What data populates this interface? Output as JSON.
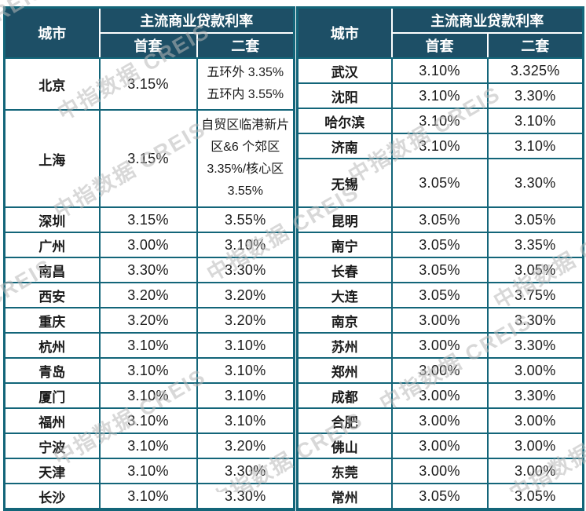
{
  "watermark": {
    "text": "中指数据 CREIS",
    "color": "#b9b9b9"
  },
  "chart_data": [
    {
      "type": "table",
      "title": "",
      "header": {
        "city": "城市",
        "group": "主流商业贷款利率",
        "first": "首套",
        "second": "二套"
      },
      "columns": [
        "城市",
        "首套",
        "二套"
      ],
      "rows": [
        {
          "city": "北京",
          "first": "3.15%",
          "second": "五环外 3.35%五环内 3.55%",
          "tall": 2
        },
        {
          "city": "上海",
          "first": "3.15%",
          "second": "自贸区临港新片区&6 个郊区 3.35%/核心区 3.55%",
          "tall": 4
        },
        {
          "city": "深圳",
          "first": "3.15%",
          "second": "3.55%"
        },
        {
          "city": "广州",
          "first": "3.00%",
          "second": "3.10%"
        },
        {
          "city": "南昌",
          "first": "3.30%",
          "second": "3.30%"
        },
        {
          "city": "西安",
          "first": "3.20%",
          "second": "3.20%"
        },
        {
          "city": "重庆",
          "first": "3.20%",
          "second": "3.20%"
        },
        {
          "city": "杭州",
          "first": "3.10%",
          "second": "3.10%"
        },
        {
          "city": "青岛",
          "first": "3.10%",
          "second": "3.10%"
        },
        {
          "city": "厦门",
          "first": "3.10%",
          "second": "3.10%"
        },
        {
          "city": "福州",
          "first": "3.10%",
          "second": "3.10%"
        },
        {
          "city": "宁波",
          "first": "3.10%",
          "second": "3.20%"
        },
        {
          "city": "天津",
          "first": "3.10%",
          "second": "3.30%"
        },
        {
          "city": "长沙",
          "first": "3.10%",
          "second": "3.30%"
        }
      ]
    },
    {
      "type": "table",
      "title": "",
      "header": {
        "city": "城市",
        "group": "主流商业贷款利率",
        "first": "首套",
        "second": "二套"
      },
      "columns": [
        "城市",
        "首套",
        "二套"
      ],
      "rows": [
        {
          "city": "武汉",
          "first": "3.10%",
          "second": "3.325%"
        },
        {
          "city": "沈阳",
          "first": "3.10%",
          "second": "3.30%"
        },
        {
          "city": "哈尔滨",
          "first": "3.10%",
          "second": "3.10%"
        },
        {
          "city": "济南",
          "first": "3.10%",
          "second": "3.10%"
        },
        {
          "city": "无锡",
          "first": "3.05%",
          "second": "3.30%",
          "tall": 2
        },
        {
          "city": "昆明",
          "first": "3.05%",
          "second": "3.05%"
        },
        {
          "city": "南宁",
          "first": "3.05%",
          "second": "3.35%"
        },
        {
          "city": "长春",
          "first": "3.05%",
          "second": "3.05%"
        },
        {
          "city": "大连",
          "first": "3.05%",
          "second": "3.75%"
        },
        {
          "city": "南京",
          "first": "3.00%",
          "second": "3.30%"
        },
        {
          "city": "苏州",
          "first": "3.00%",
          "second": "3.30%"
        },
        {
          "city": "郑州",
          "first": "3.00%",
          "second": "3.00%"
        },
        {
          "city": "成都",
          "first": "3.00%",
          "second": "3.30%"
        },
        {
          "city": "合肥",
          "first": "3.00%",
          "second": "3.00%"
        },
        {
          "city": "佛山",
          "first": "3.00%",
          "second": "3.00%"
        },
        {
          "city": "东莞",
          "first": "3.00%",
          "second": "3.00%"
        },
        {
          "city": "常州",
          "first": "3.05%",
          "second": "3.05%"
        }
      ]
    }
  ]
}
